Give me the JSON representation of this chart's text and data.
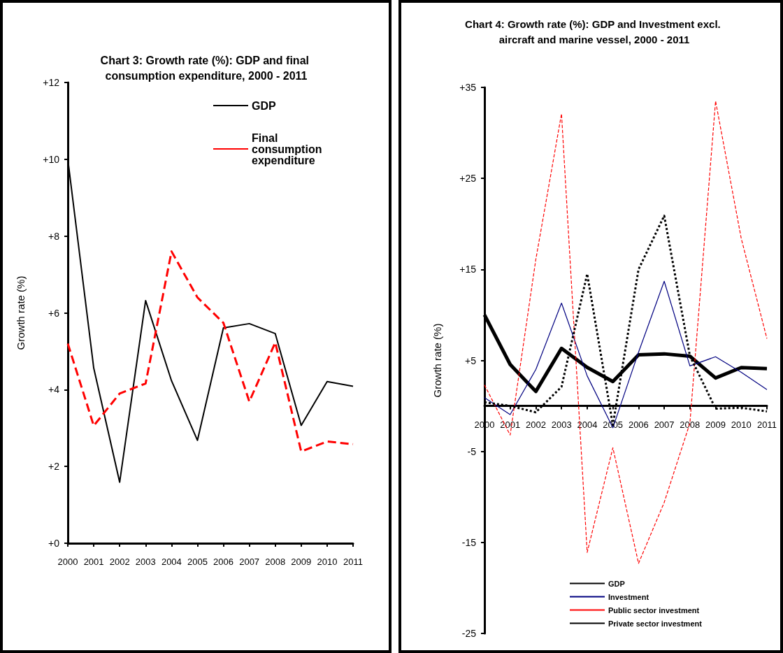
{
  "chart_data": [
    {
      "type": "line",
      "title": "Chart 3: Growth rate (%): GDP and final consumption expenditure, 2000 - 2011",
      "ylabel": "Growth rate (%)",
      "categories": [
        "2000",
        "2001",
        "2002",
        "2003",
        "2004",
        "2005",
        "2006",
        "2007",
        "2008",
        "2009",
        "2010",
        "2011"
      ],
      "series": [
        {
          "name": "GDP",
          "color": "#000000",
          "line_style": "solid",
          "values": [
            10.0,
            4.56,
            1.59,
            6.32,
            4.23,
            2.68,
            5.61,
            5.72,
            5.46,
            3.07,
            4.21,
            4.09
          ]
        },
        {
          "name": "Final consumption expenditure",
          "color": "#ff0000",
          "line_style": "dashed",
          "values": [
            5.2,
            3.06,
            3.9,
            4.16,
            7.6,
            6.4,
            5.74,
            3.69,
            5.23,
            2.39,
            2.65,
            2.58
          ]
        }
      ],
      "ylim": [
        0,
        12
      ],
      "yticks": [
        {
          "value": 0,
          "label": "+0"
        },
        {
          "value": 2,
          "label": "+2"
        },
        {
          "value": 4,
          "label": "+4"
        },
        {
          "value": 6,
          "label": "+6"
        },
        {
          "value": 8,
          "label": "+8"
        },
        {
          "value": 10,
          "label": "+10"
        },
        {
          "value": 12,
          "label": "+12"
        }
      ],
      "grid": false,
      "legend": "top right",
      "marker": "none"
    },
    {
      "type": "line",
      "title": "Chart 4: Growth rate (%): GDP and Investment excl. aircraft and marine vessel, 2000 - 2011",
      "ylabel": "Growth rate (%)",
      "categories": [
        "2000",
        "2001",
        "2002",
        "2003",
        "2004",
        "2005",
        "2006",
        "2007",
        "2008",
        "2009",
        "2010",
        "2011"
      ],
      "series": [
        {
          "name": "GDP",
          "color": "#000000",
          "line_style": "solid",
          "values": [
            10.0,
            4.56,
            1.59,
            6.32,
            4.23,
            2.68,
            5.61,
            5.72,
            5.46,
            3.07,
            4.21,
            4.09
          ]
        },
        {
          "name": "Investment",
          "color": "#000080",
          "line_style": "solid",
          "values": [
            0.9,
            -0.95,
            4.0,
            11.3,
            3.3,
            -2.4,
            5.9,
            13.7,
            4.4,
            5.4,
            3.7,
            1.8
          ]
        },
        {
          "name": "Public sector investment",
          "color": "#ff0000",
          "line_style": "dashed",
          "values": [
            2.3,
            -3.2,
            16.1,
            32.1,
            -16.1,
            -4.6,
            -17.3,
            -10.6,
            -1.9,
            33.5,
            18.4,
            7.4
          ]
        },
        {
          "name": "Private sector investment",
          "color": "#000000",
          "line_style": "dotted",
          "values": [
            0.4,
            0.0,
            -0.7,
            2.1,
            14.5,
            -2.1,
            15.0,
            20.9,
            5.5,
            -0.3,
            -0.2,
            -0.6
          ]
        }
      ],
      "ylim": [
        -25,
        35
      ],
      "yticks": [
        {
          "value": -25,
          "label": "-25"
        },
        {
          "value": -15,
          "label": "-15"
        },
        {
          "value": -5,
          "label": "-5"
        },
        {
          "value": 5,
          "label": "+5"
        },
        {
          "value": 15,
          "label": "+15"
        },
        {
          "value": 25,
          "label": "+25"
        },
        {
          "value": 35,
          "label": "+35"
        }
      ],
      "grid": false,
      "legend": "bottom",
      "marker": "none"
    }
  ]
}
